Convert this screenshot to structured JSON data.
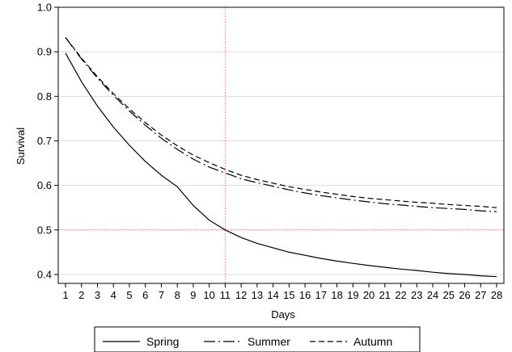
{
  "chart_data": {
    "type": "line",
    "xlabel": "Days",
    "ylabel": "Survival",
    "x": [
      1,
      2,
      3,
      4,
      5,
      6,
      7,
      8,
      9,
      10,
      11,
      12,
      13,
      14,
      15,
      16,
      17,
      18,
      19,
      20,
      21,
      22,
      23,
      24,
      25,
      26,
      27,
      28
    ],
    "xlim": [
      1,
      28
    ],
    "ylim": [
      0.38,
      1.0
    ],
    "yticks": [
      0.4,
      0.5,
      0.6,
      0.7,
      0.8,
      0.9,
      1.0
    ],
    "ytick_labels": [
      "0.4",
      "0.5",
      "0.6",
      "0.7",
      "0.8",
      "0.9",
      "1.0"
    ],
    "grid": "horizontal",
    "reference_lines": {
      "x": 11,
      "y": 0.5,
      "color": "#e8868a",
      "style": "dotted"
    },
    "legend": {
      "position": "bottom",
      "entries": [
        "Spring",
        "Summer",
        "Autumn"
      ]
    },
    "series": [
      {
        "name": "Spring",
        "style": "solid",
        "values": [
          0.897,
          0.833,
          0.778,
          0.731,
          0.69,
          0.654,
          0.623,
          0.597,
          0.555,
          0.522,
          0.5,
          0.483,
          0.47,
          0.46,
          0.45,
          0.443,
          0.436,
          0.43,
          0.425,
          0.42,
          0.416,
          0.412,
          0.409,
          0.405,
          0.402,
          0.4,
          0.397,
          0.395
        ]
      },
      {
        "name": "Summer",
        "style": "longdash",
        "values": [
          0.932,
          0.884,
          0.841,
          0.802,
          0.767,
          0.735,
          0.706,
          0.681,
          0.659,
          0.641,
          0.628,
          0.615,
          0.606,
          0.598,
          0.59,
          0.583,
          0.577,
          0.572,
          0.567,
          0.563,
          0.559,
          0.556,
          0.553,
          0.55,
          0.548,
          0.546,
          0.543,
          0.541
        ]
      },
      {
        "name": "Autumn",
        "style": "shortdash",
        "values": [
          0.932,
          0.886,
          0.844,
          0.806,
          0.772,
          0.741,
          0.713,
          0.689,
          0.668,
          0.651,
          0.636,
          0.623,
          0.613,
          0.605,
          0.597,
          0.591,
          0.585,
          0.58,
          0.575,
          0.571,
          0.568,
          0.565,
          0.562,
          0.56,
          0.557,
          0.555,
          0.553,
          0.55
        ]
      }
    ]
  }
}
